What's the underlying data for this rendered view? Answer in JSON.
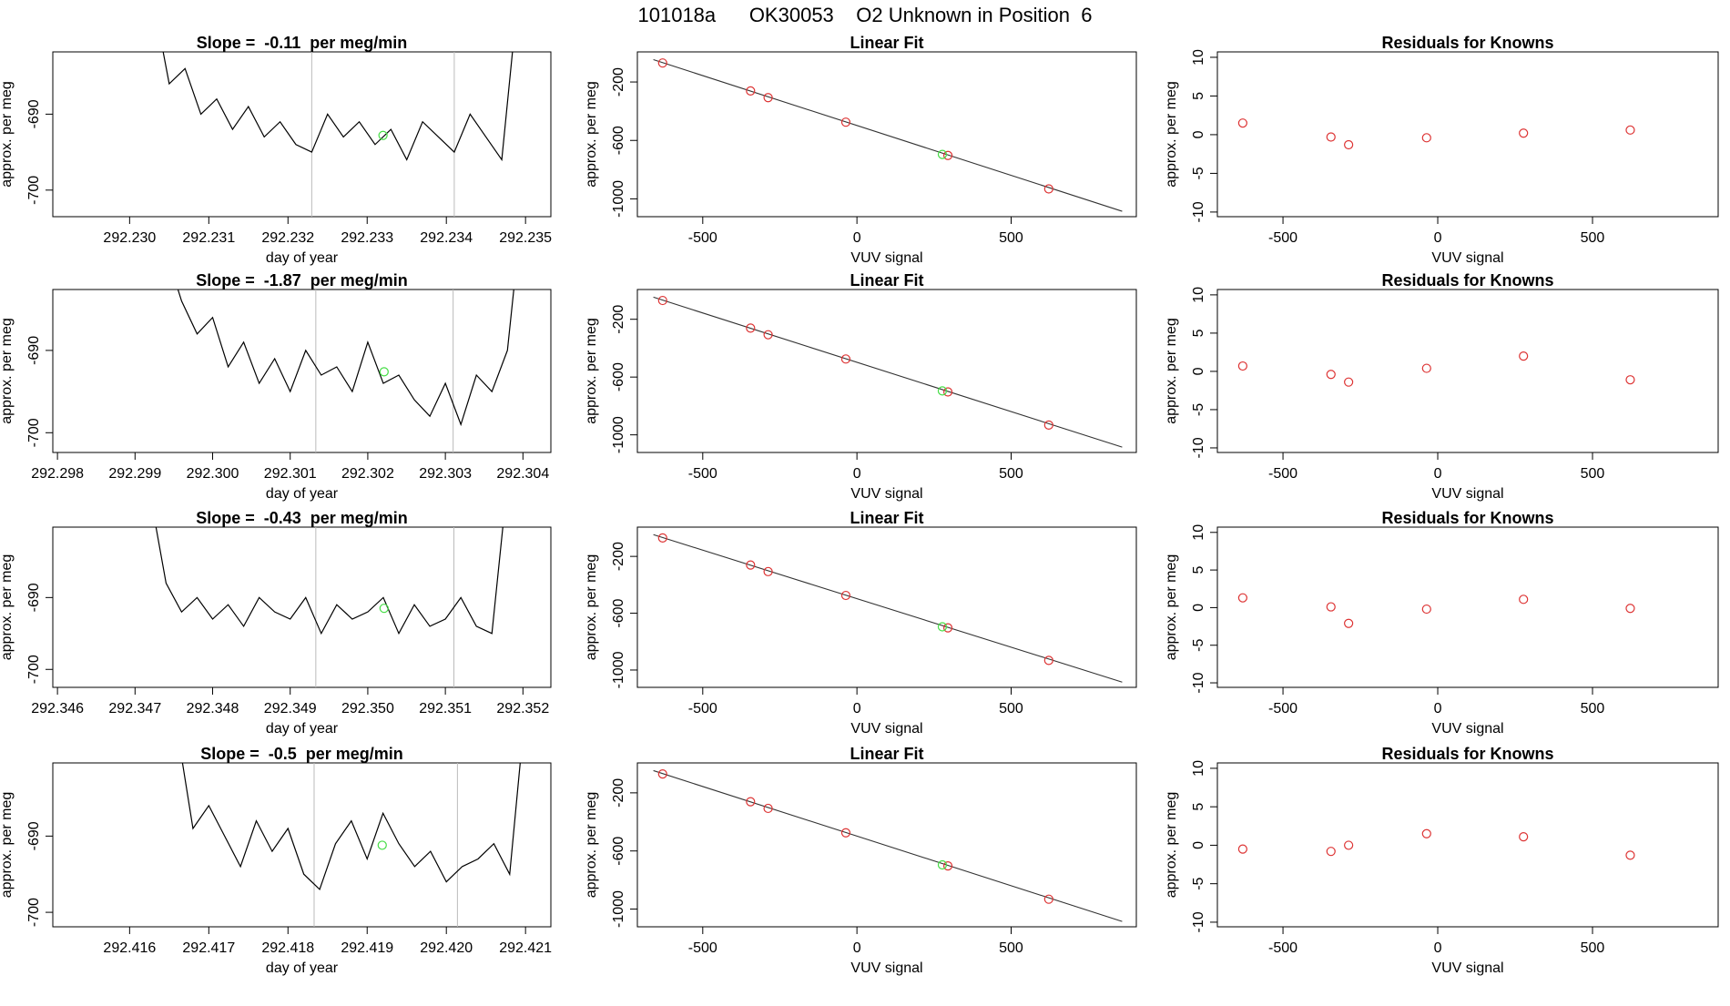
{
  "title": "101018a      OK30053    O2 Unknown in Position  6",
  "chart_data": [
    {
      "type": "line",
      "title": "Slope =  -0.11  per meg/min",
      "xlabel": "day of year",
      "ylabel": "approx. per meg",
      "color": "#000000",
      "x": [
        292.2303,
        292.2305,
        292.2307,
        292.2309,
        292.2311,
        292.2313,
        292.2315,
        292.2317,
        292.2319,
        292.2321,
        292.2323,
        292.2325,
        292.2327,
        292.2329,
        292.2331,
        292.2333,
        292.2335,
        292.2337,
        292.2339,
        292.2341,
        292.2343,
        292.2345,
        292.2347,
        292.2349
      ],
      "values": [
        -675,
        -686,
        -684,
        -690,
        -688,
        -692,
        -689,
        -693,
        -691,
        -694,
        -695,
        -690,
        -693,
        -691,
        -694,
        -692,
        -696,
        -691,
        -693,
        -695,
        -690,
        -693,
        -696,
        -675
      ],
      "xlim": [
        292.22903,
        292.23532
      ],
      "ylim": [
        -703.5,
        -681.8
      ],
      "xticks": [
        {
          "value": 292.23,
          "label": "292.230"
        },
        292.231,
        292.232,
        292.233,
        292.234,
        292.235
      ],
      "yticks": [
        -700,
        -690
      ],
      "vlines": [
        292.2323,
        292.2341
      ],
      "highlight": {
        "x": 292.2332,
        "y": -692.8,
        "color": "#44dd44"
      }
    },
    {
      "type": "scatter",
      "title": "Linear Fit",
      "xlabel": "VUV signal",
      "ylabel": "approx. per meg",
      "color": "#dd3333",
      "x": [
        -630,
        -345,
        -288,
        -36,
        295,
        622
      ],
      "values": [
        -70,
        -261,
        -307,
        -475,
        -703,
        -932
      ],
      "fit": {
        "x": [
          -660,
          860
        ],
        "y": [
          -47,
          -1085
        ]
      },
      "xlim": [
        -712,
        906
      ],
      "ylim": [
        -1122,
        6
      ],
      "xticks": [
        -500,
        0,
        500
      ],
      "yticks": [
        -1000,
        -600,
        -200
      ],
      "highlight": {
        "x": 277,
        "y": -696,
        "color": "#44dd44"
      }
    },
    {
      "type": "scatter",
      "title": "Residuals for Knowns",
      "xlabel": "VUV signal",
      "ylabel": "approx. per meg",
      "color": "#dd3333",
      "x": [
        -630,
        -345,
        -288,
        -36,
        277,
        622
      ],
      "values": [
        1.5,
        -0.3,
        -1.3,
        -0.4,
        0.2,
        0.6
      ],
      "xlim": [
        -712,
        906
      ],
      "ylim": [
        -10.6,
        10.7
      ],
      "xticks": [
        -500,
        0,
        500
      ],
      "yticks": [
        -10,
        -5,
        0,
        5,
        10
      ]
    },
    {
      "type": "line",
      "title": "Slope =  -1.87  per meg/min",
      "xlabel": "day of year",
      "ylabel": "approx. per meg",
      "color": "#000000",
      "x": [
        292.2994,
        292.2996,
        292.2998,
        292.3,
        292.3002,
        292.3004,
        292.3006,
        292.3008,
        292.301,
        292.3012,
        292.3014,
        292.3016,
        292.3018,
        292.302,
        292.3022,
        292.3024,
        292.3026,
        292.3028,
        292.303,
        292.3032,
        292.3034,
        292.3036,
        292.3038,
        292.304
      ],
      "values": [
        -678,
        -684,
        -688,
        -686,
        -692,
        -689,
        -694,
        -691,
        -695,
        -690,
        -693,
        -692,
        -695,
        -689,
        -694,
        -693,
        -696,
        -698,
        -694,
        -699,
        -693,
        -695,
        -690,
        -672
      ],
      "xlim": [
        292.29794,
        292.30436
      ],
      "ylim": [
        -702.4,
        -682.6
      ],
      "xticks": [
        292.298,
        292.299,
        {
          "value": 292.3,
          "label": "292.300"
        },
        292.301,
        292.302,
        292.303,
        292.304
      ],
      "yticks": [
        -700,
        -690
      ],
      "vlines": [
        292.30133,
        292.3031
      ],
      "highlight": {
        "x": 292.30221,
        "y": -692.6,
        "color": "#44dd44"
      }
    },
    {
      "type": "scatter",
      "title": "Linear Fit",
      "xlabel": "VUV signal",
      "ylabel": "approx. per meg",
      "color": "#dd3333",
      "x": [
        -630,
        -345,
        -288,
        -36,
        295,
        622
      ],
      "values": [
        -70,
        -261,
        -307,
        -475,
        -703,
        -932
      ],
      "fit": {
        "x": [
          -660,
          860
        ],
        "y": [
          -47,
          -1085
        ]
      },
      "xlim": [
        -712,
        906
      ],
      "ylim": [
        -1122,
        6
      ],
      "xticks": [
        -500,
        0,
        500
      ],
      "yticks": [
        -1000,
        -600,
        -200
      ],
      "highlight": {
        "x": 277,
        "y": -696,
        "color": "#44dd44"
      }
    },
    {
      "type": "scatter",
      "title": "Residuals for Knowns",
      "xlabel": "VUV signal",
      "ylabel": "approx. per meg",
      "color": "#dd3333",
      "x": [
        -630,
        -345,
        -288,
        -36,
        277,
        622
      ],
      "values": [
        0.7,
        -0.4,
        -1.4,
        0.4,
        2.0,
        -1.1
      ],
      "xlim": [
        -712,
        906
      ],
      "ylim": [
        -10.6,
        10.7
      ],
      "xticks": [
        -500,
        0,
        500
      ],
      "yticks": [
        -10,
        -5,
        0,
        5,
        10
      ]
    },
    {
      "type": "line",
      "title": "Slope =  -0.43  per meg/min",
      "xlabel": "day of year",
      "ylabel": "approx. per meg",
      "color": "#000000",
      "x": [
        292.3472,
        292.3474,
        292.3476,
        292.3478,
        292.348,
        292.3482,
        292.3484,
        292.3486,
        292.3488,
        292.349,
        292.3492,
        292.3494,
        292.3496,
        292.3498,
        292.35,
        292.3502,
        292.3504,
        292.3506,
        292.3508,
        292.351,
        292.3512,
        292.3514,
        292.3516,
        292.3518
      ],
      "values": [
        -676,
        -688,
        -692,
        -690,
        -693,
        -691,
        -694,
        -690,
        -692,
        -693,
        -690,
        -695,
        -691,
        -693,
        -692,
        -690,
        -695,
        -691,
        -694,
        -693,
        -690,
        -694,
        -695,
        -674
      ],
      "xlim": [
        292.34594,
        292.35236
      ],
      "ylim": [
        -702.5,
        -680.2
      ],
      "xticks": [
        292.346,
        292.347,
        292.348,
        292.349,
        {
          "value": 292.35,
          "label": "292.350"
        },
        292.351,
        292.352
      ],
      "yticks": [
        -700,
        -690
      ],
      "vlines": [
        292.34933,
        292.35111
      ],
      "highlight": {
        "x": 292.35021,
        "y": -691.5,
        "color": "#44dd44"
      }
    },
    {
      "type": "scatter",
      "title": "Linear Fit",
      "xlabel": "VUV signal",
      "ylabel": "approx. per meg",
      "color": "#dd3333",
      "x": [
        -630,
        -345,
        -288,
        -36,
        295,
        622
      ],
      "values": [
        -70,
        -261,
        -307,
        -475,
        -703,
        -932
      ],
      "fit": {
        "x": [
          -660,
          860
        ],
        "y": [
          -47,
          -1085
        ]
      },
      "xlim": [
        -712,
        906
      ],
      "ylim": [
        -1122,
        6
      ],
      "xticks": [
        -500,
        0,
        500
      ],
      "yticks": [
        -1000,
        -600,
        -200
      ],
      "highlight": {
        "x": 277,
        "y": -696,
        "color": "#44dd44"
      }
    },
    {
      "type": "scatter",
      "title": "Residuals for Knowns",
      "xlabel": "VUV signal",
      "ylabel": "approx. per meg",
      "color": "#dd3333",
      "x": [
        -630,
        -345,
        -288,
        -36,
        277,
        622
      ],
      "values": [
        1.3,
        0.1,
        -2.1,
        -0.2,
        1.1,
        -0.1
      ],
      "xlim": [
        -712,
        906
      ],
      "ylim": [
        -10.6,
        10.7
      ],
      "xticks": [
        -500,
        0,
        500
      ],
      "yticks": [
        -10,
        -5,
        0,
        5,
        10
      ]
    },
    {
      "type": "line",
      "title": "Slope =  -0.5  per meg/min",
      "xlabel": "day of year",
      "ylabel": "approx. per meg",
      "color": "#000000",
      "x": [
        292.4166,
        292.4168,
        292.417,
        292.4172,
        292.4174,
        292.4176,
        292.4178,
        292.418,
        292.4182,
        292.4184,
        292.4186,
        292.4188,
        292.419,
        292.4192,
        292.4194,
        292.4196,
        292.4198,
        292.42,
        292.4202,
        292.4204,
        292.4206,
        292.4208,
        292.421
      ],
      "values": [
        -676,
        -689,
        -686,
        -690,
        -694,
        -688,
        -692,
        -689,
        -695,
        -697,
        -691,
        -688,
        -693,
        -687,
        -691,
        -694,
        -692,
        -696,
        -694,
        -693,
        -691,
        -695,
        -673
      ],
      "xlim": [
        292.41503,
        292.42132
      ],
      "ylim": [
        -701.9,
        -680.4
      ],
      "xticks": [
        292.416,
        292.417,
        292.418,
        292.419,
        {
          "value": 292.42,
          "label": "292.420"
        },
        292.421
      ],
      "yticks": [
        -700,
        -690
      ],
      "vlines": [
        292.41833,
        292.42014
      ],
      "highlight": {
        "x": 292.41919,
        "y": -691.2,
        "color": "#44dd44"
      }
    },
    {
      "type": "scatter",
      "title": "Linear Fit",
      "xlabel": "VUV signal",
      "ylabel": "approx. per meg",
      "color": "#dd3333",
      "x": [
        -630,
        -345,
        -288,
        -36,
        295,
        622
      ],
      "values": [
        -70,
        -261,
        -307,
        -475,
        -703,
        -932
      ],
      "fit": {
        "x": [
          -660,
          860
        ],
        "y": [
          -47,
          -1085
        ]
      },
      "xlim": [
        -712,
        906
      ],
      "ylim": [
        -1122,
        6
      ],
      "xticks": [
        -500,
        0,
        500
      ],
      "yticks": [
        -1000,
        -600,
        -200
      ],
      "highlight": {
        "x": 277,
        "y": -696,
        "color": "#44dd44"
      }
    },
    {
      "type": "scatter",
      "title": "Residuals for Knowns",
      "xlabel": "VUV signal",
      "ylabel": "approx. per meg",
      "color": "#dd3333",
      "x": [
        -630,
        -345,
        -288,
        -36,
        277,
        622
      ],
      "values": [
        -0.5,
        -0.8,
        0.0,
        1.5,
        1.1,
        -1.3
      ],
      "xlim": [
        -712,
        906
      ],
      "ylim": [
        -10.6,
        10.7
      ],
      "xticks": [
        -500,
        0,
        500
      ],
      "yticks": [
        -10,
        -5,
        0,
        5,
        10
      ]
    }
  ]
}
